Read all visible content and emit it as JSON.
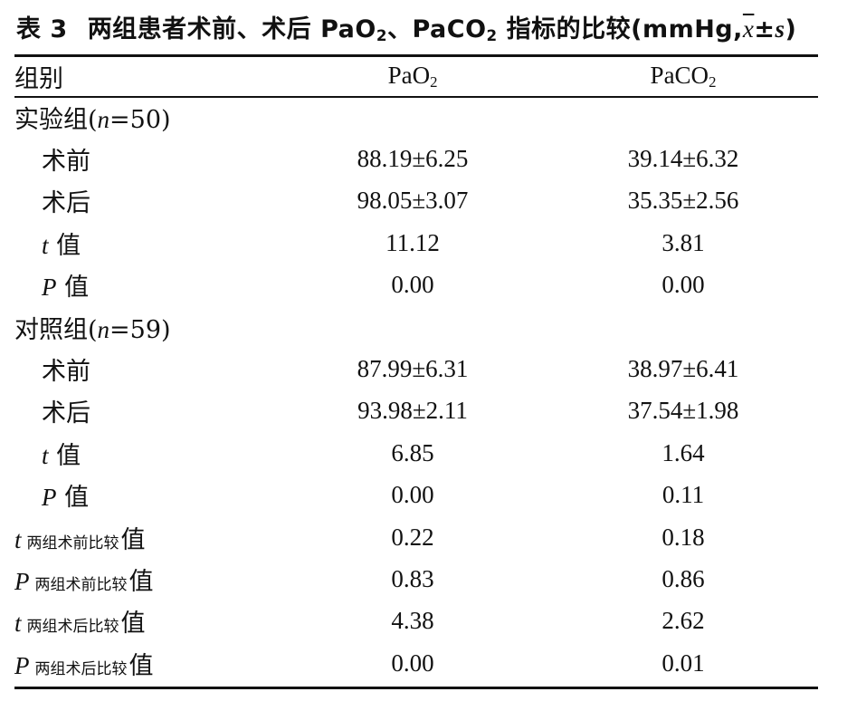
{
  "caption": {
    "number": "表 3",
    "title_part1": "两组患者术前、术后 PaO",
    "title_sub1": "2",
    "title_part2": "、PaCO",
    "title_sub2": "2",
    "title_part3": " 指标的比较(mmHg,",
    "title_mean": "x",
    "title_part4": "±",
    "title_s": "s",
    "title_part5": ")"
  },
  "table": {
    "headers": {
      "group": "组别",
      "pao2_main": "PaO",
      "pao2_sub": "2",
      "paco2_main": "PaCO",
      "paco2_sub": "2"
    },
    "experimental": {
      "label_prefix": "实验组(",
      "n_var": "n",
      "label_suffix": "=50)",
      "rows": [
        {
          "label": "术前",
          "pao2": "88.19±6.25",
          "paco2": "39.14±6.32"
        },
        {
          "label": "术后",
          "pao2": "98.05±3.07",
          "paco2": "35.35±2.56"
        }
      ],
      "t_row": {
        "var": "t",
        "label": " 值",
        "pao2": "11.12",
        "paco2": "3.81"
      },
      "p_row": {
        "var": "P",
        "label": " 值",
        "pao2": "0.00",
        "paco2": "0.00"
      }
    },
    "control": {
      "label_prefix": "对照组(",
      "n_var": "n",
      "label_suffix": "=59)",
      "rows": [
        {
          "label": "术前",
          "pao2": "87.99±6.31",
          "paco2": "38.97±6.41"
        },
        {
          "label": "术后",
          "pao2": "93.98±2.11",
          "paco2": "37.54±1.98"
        }
      ],
      "t_row": {
        "var": "t",
        "label": " 值",
        "pao2": "6.85",
        "paco2": "1.64"
      },
      "p_row": {
        "var": "P",
        "label": " 值",
        "pao2": "0.00",
        "paco2": "0.11"
      }
    },
    "comparisons": [
      {
        "var": "t",
        "sub": "两组术前比较",
        "label": "值",
        "pao2": "0.22",
        "paco2": "0.18"
      },
      {
        "var": "P",
        "sub": "两组术前比较",
        "label": "值",
        "pao2": "0.83",
        "paco2": "0.86"
      },
      {
        "var": "t",
        "sub": "两组术后比较",
        "label": "值",
        "pao2": "4.38",
        "paco2": "2.62"
      },
      {
        "var": "P",
        "sub": "两组术后比较",
        "label": "值",
        "pao2": "0.00",
        "paco2": "0.01"
      }
    ]
  }
}
